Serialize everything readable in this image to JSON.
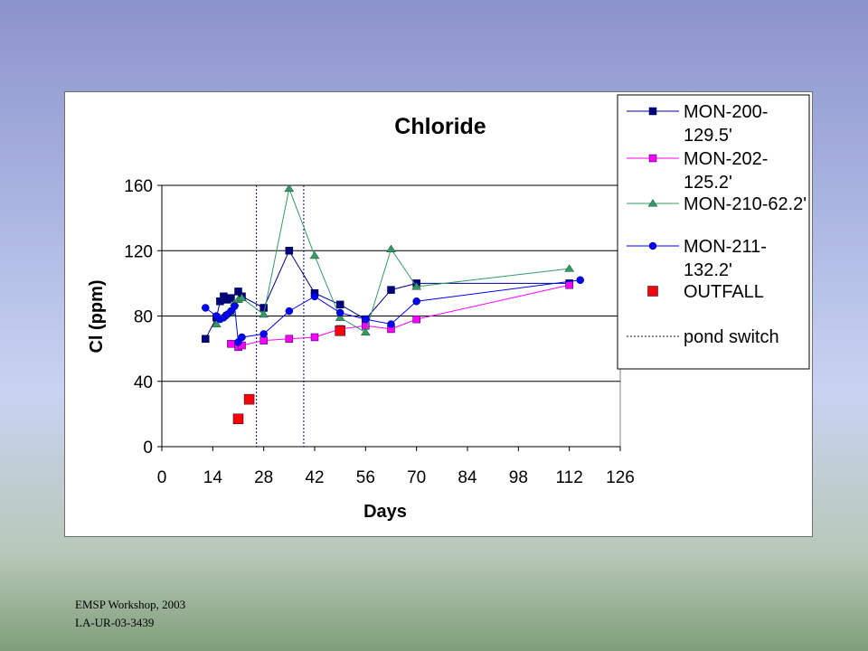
{
  "footer": {
    "line1": "EMSP Workshop, 2003",
    "line2": "LA-UR-03-3439"
  },
  "chart_data": {
    "type": "scatter",
    "title": "Chloride",
    "xlabel": "Days",
    "ylabel": "Cl (ppm)",
    "xlim": [
      0,
      126
    ],
    "ylim": [
      0,
      160
    ],
    "xticks": [
      0,
      14,
      28,
      42,
      56,
      70,
      84,
      98,
      112,
      126
    ],
    "yticks": [
      0,
      40,
      80,
      120,
      160
    ],
    "grid": "horizontal",
    "legend_position": "top-right",
    "vertical_lines": [
      {
        "x": 26,
        "label": "pond switch"
      },
      {
        "x": 39,
        "label": "pond switch"
      }
    ],
    "series": [
      {
        "name": "MON-200-\n129.5'",
        "marker": "square",
        "color": "#000080",
        "line": true,
        "points": [
          [
            12,
            66
          ],
          [
            15,
            79
          ],
          [
            16,
            89
          ],
          [
            17,
            92
          ],
          [
            18,
            90
          ],
          [
            19,
            91
          ],
          [
            21,
            95
          ],
          [
            22,
            92
          ],
          [
            28,
            85
          ],
          [
            35,
            120
          ],
          [
            42,
            94
          ],
          [
            49,
            87
          ],
          [
            56,
            78
          ],
          [
            63,
            96
          ],
          [
            70,
            100
          ],
          [
            112,
            100
          ]
        ]
      },
      {
        "name": "MON-202-\n125.2'",
        "marker": "square",
        "color": "#ff00ff",
        "line": true,
        "points": [
          [
            19,
            63
          ],
          [
            21,
            61
          ],
          [
            22,
            62
          ],
          [
            28,
            65
          ],
          [
            35,
            66
          ],
          [
            42,
            67
          ],
          [
            49,
            72
          ],
          [
            56,
            74
          ],
          [
            63,
            72
          ],
          [
            70,
            78
          ],
          [
            112,
            99
          ]
        ]
      },
      {
        "name": "MON-210-62.2'",
        "marker": "triangle",
        "color": "#339966",
        "line": true,
        "points": [
          [
            15,
            75
          ],
          [
            17,
            80
          ],
          [
            19,
            82
          ],
          [
            20,
            88
          ],
          [
            21,
            90
          ],
          [
            22,
            91
          ],
          [
            28,
            81
          ],
          [
            35,
            158
          ],
          [
            42,
            117
          ],
          [
            49,
            79
          ],
          [
            56,
            70
          ],
          [
            63,
            121
          ],
          [
            70,
            98
          ],
          [
            112,
            109
          ]
        ]
      },
      {
        "name": "MON-211-\n132.2'",
        "marker": "circle",
        "color": "#0000ff",
        "line": true,
        "points": [
          [
            12,
            85
          ],
          [
            15,
            80
          ],
          [
            16,
            78
          ],
          [
            17,
            79
          ],
          [
            18,
            81
          ],
          [
            19,
            83
          ],
          [
            20,
            86
          ],
          [
            21,
            64
          ],
          [
            22,
            67
          ],
          [
            28,
            69
          ],
          [
            35,
            83
          ],
          [
            42,
            92
          ],
          [
            49,
            82
          ],
          [
            56,
            78
          ],
          [
            63,
            75
          ],
          [
            70,
            89
          ],
          [
            115,
            102
          ]
        ]
      },
      {
        "name": "OUTFALL",
        "marker": "square",
        "color": "#ff0000",
        "line": false,
        "points": [
          [
            21,
            17
          ],
          [
            24,
            29
          ],
          [
            49,
            71
          ]
        ]
      }
    ],
    "legend_extra": {
      "label": "pond switch",
      "color": "#000080",
      "style": "dotted"
    }
  }
}
